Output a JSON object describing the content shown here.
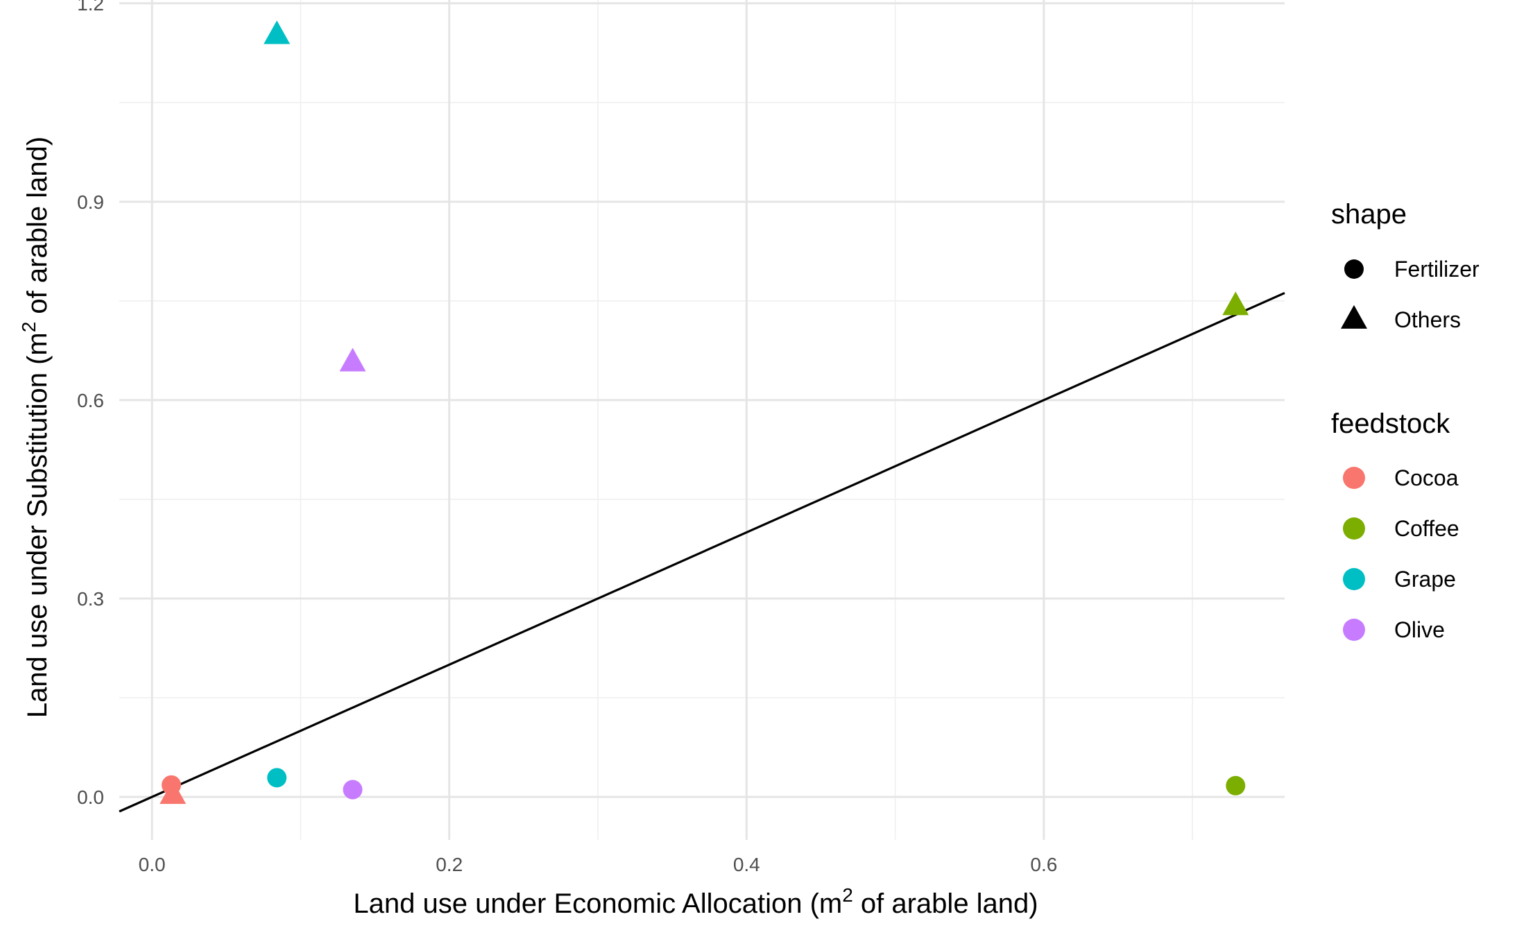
{
  "chart_data": {
    "type": "scatter",
    "xlabel_main": "Land use under Economic Allocation (m",
    "xlabel_sup": "2",
    "xlabel_tail": " of arable land)",
    "ylabel_main": "Land use under Substitution (m",
    "ylabel_sup": "2",
    "ylabel_tail": " of arable land)",
    "xlim": [
      -0.022,
      0.762
    ],
    "ylim": [
      -0.065,
      1.205
    ],
    "x_ticks": [
      0.0,
      0.2,
      0.4,
      0.6
    ],
    "x_tick_labels": [
      "0.0",
      "0.2",
      "0.4",
      "0.6"
    ],
    "x_minor_ticks": [
      0.1,
      0.3,
      0.5,
      0.7
    ],
    "y_ticks": [
      0.0,
      0.3,
      0.6,
      0.9,
      1.2
    ],
    "y_tick_labels": [
      "0.0",
      "0.3",
      "0.6",
      "0.9",
      "1.2"
    ],
    "y_minor_ticks": [
      0.15,
      0.45,
      0.75,
      1.05
    ],
    "grid": true,
    "reference_line": {
      "slope": 1,
      "intercept": 0,
      "color": "#000000"
    },
    "legend_placement": "right",
    "shape_legend": {
      "title": "shape",
      "entries": [
        {
          "label": "Fertilizer",
          "shape": "circle"
        },
        {
          "label": "Others",
          "shape": "triangle"
        }
      ]
    },
    "color_legend": {
      "title": "feedstock",
      "entries": [
        {
          "label": "Cocoa",
          "color": "#F8766D"
        },
        {
          "label": "Coffee",
          "color": "#7CAE00"
        },
        {
          "label": "Grape",
          "color": "#00BFC4"
        },
        {
          "label": "Olive",
          "color": "#C77CFF"
        }
      ]
    },
    "points": [
      {
        "feedstock": "Cocoa",
        "shape": "Fertilizer",
        "x": 0.013,
        "y": 0.018
      },
      {
        "feedstock": "Cocoa",
        "shape": "Others",
        "x": 0.014,
        "y": 0.003
      },
      {
        "feedstock": "Coffee",
        "shape": "Fertilizer",
        "x": 0.729,
        "y": 0.017
      },
      {
        "feedstock": "Coffee",
        "shape": "Others",
        "x": 0.729,
        "y": 0.742
      },
      {
        "feedstock": "Grape",
        "shape": "Fertilizer",
        "x": 0.084,
        "y": 0.029
      },
      {
        "feedstock": "Grape",
        "shape": "Others",
        "x": 0.084,
        "y": 1.152
      },
      {
        "feedstock": "Olive",
        "shape": "Fertilizer",
        "x": 0.135,
        "y": 0.011
      },
      {
        "feedstock": "Olive",
        "shape": "Others",
        "x": 0.135,
        "y": 0.657
      }
    ]
  }
}
